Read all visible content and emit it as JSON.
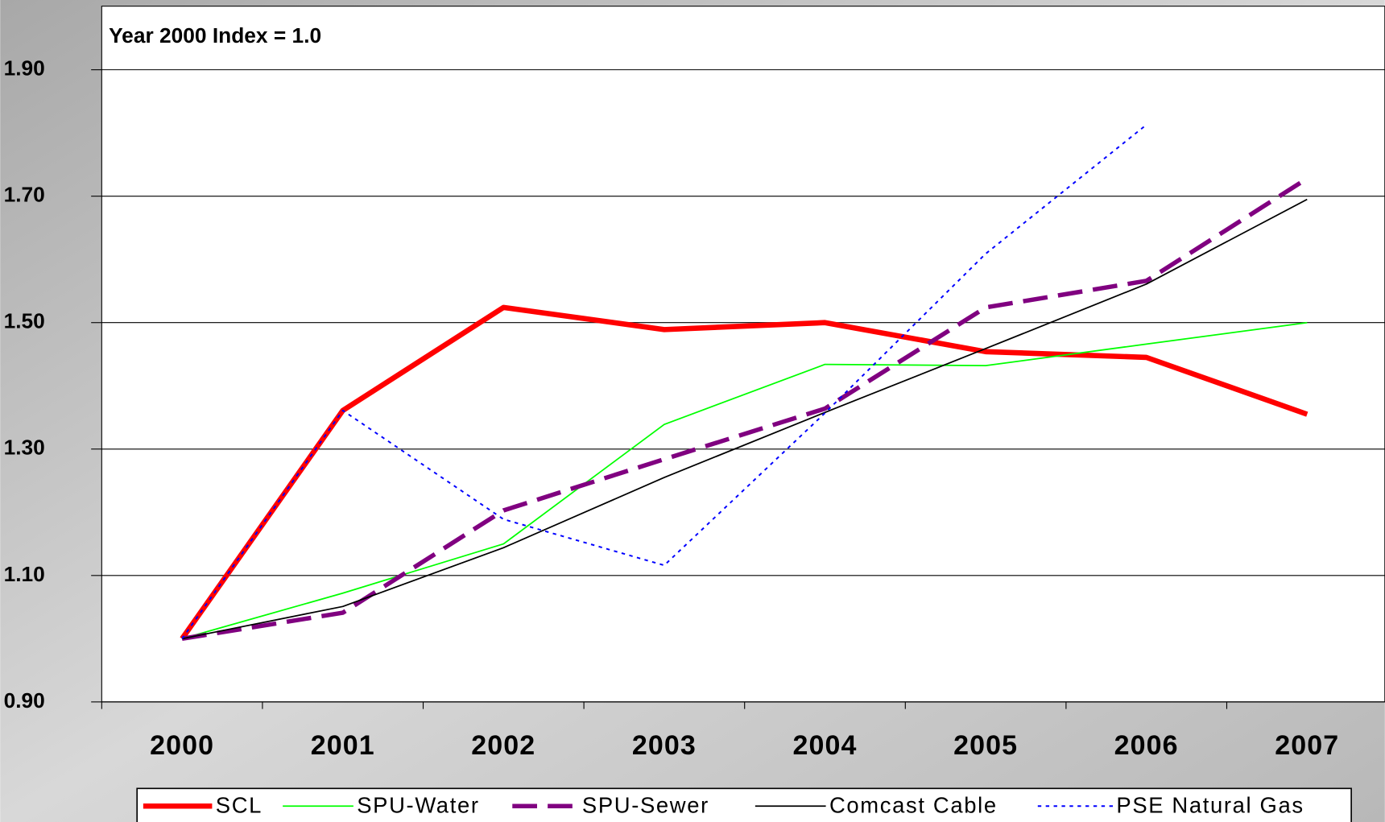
{
  "chart_data": {
    "type": "line",
    "title": "Year 2000 Index = 1.0",
    "categories": [
      "2000",
      "2001",
      "2002",
      "2003",
      "2004",
      "2005",
      "2006",
      "2007"
    ],
    "series": [
      {
        "name": "SCL",
        "color": "#ff0000",
        "line_style": "thick",
        "values": [
          1.0,
          1.361,
          1.524,
          1.489,
          1.5,
          1.454,
          1.445,
          1.355
        ]
      },
      {
        "name": "SPU-Water",
        "color": "#00ff00",
        "line_style": "solid",
        "values": [
          1.0,
          1.072,
          1.15,
          1.339,
          1.434,
          1.432,
          1.466,
          1.5
        ]
      },
      {
        "name": "SPU-Sewer",
        "color": "#800080",
        "line_style": "thick-dashed",
        "values": [
          1.0,
          1.041,
          1.203,
          1.284,
          1.364,
          1.524,
          1.566,
          1.728
        ]
      },
      {
        "name": "Comcast Cable",
        "color": "#000000",
        "line_style": "solid",
        "values": [
          1.0,
          1.051,
          1.144,
          1.255,
          1.358,
          1.459,
          1.561,
          1.695
        ]
      },
      {
        "name": "PSE Natural Gas",
        "color": "#0000ff",
        "line_style": "dotted",
        "values": [
          1.0,
          1.361,
          1.189,
          1.116,
          1.357,
          1.609,
          1.813,
          null
        ]
      }
    ],
    "ylim": [
      0.9,
      2.0
    ],
    "yticks": [
      {
        "value": 0.9,
        "label": "0.90"
      },
      {
        "value": 1.1,
        "label": "1.10"
      },
      {
        "value": 1.3,
        "label": "1.30"
      },
      {
        "value": 1.5,
        "label": "1.50"
      },
      {
        "value": 1.7,
        "label": "1.70"
      },
      {
        "value": 1.9,
        "label": "1.90"
      }
    ],
    "grid": true,
    "legend": "bottom"
  }
}
